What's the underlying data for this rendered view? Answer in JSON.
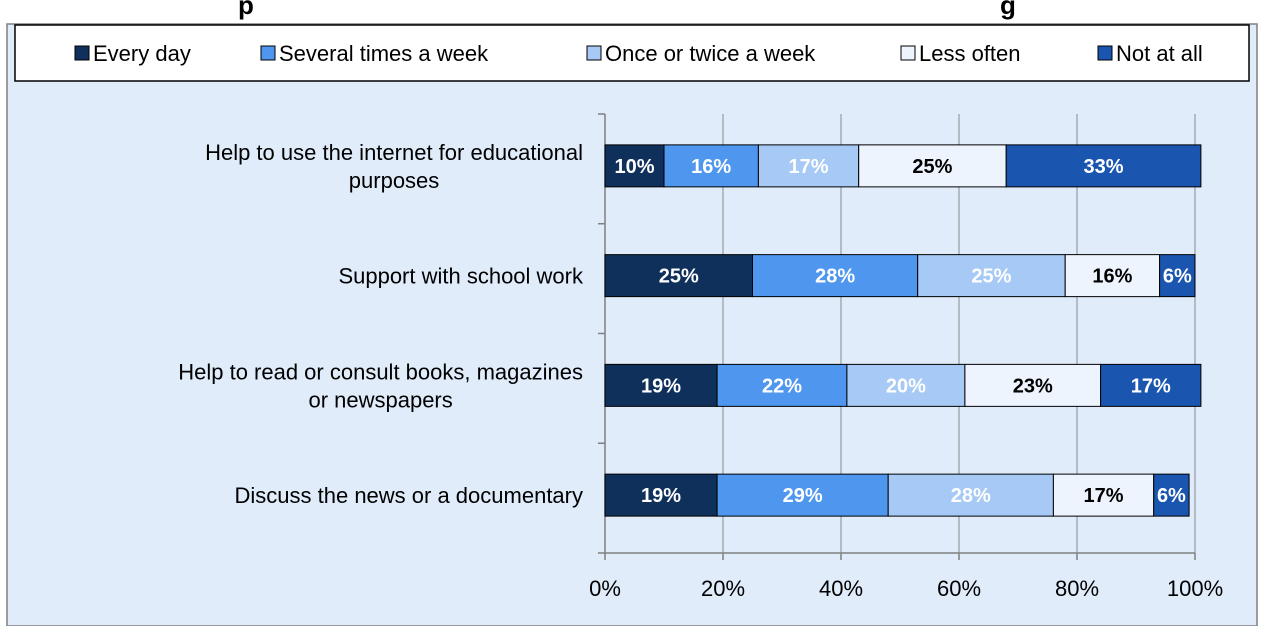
{
  "chart_data": {
    "type": "bar",
    "orientation": "horizontal",
    "stacked": true,
    "title_fragment": "p",
    "title_fragment_right": "g",
    "categories": [
      "Help to use the internet for educational purposes",
      "Support with school work",
      "Help to read or consult books, magazines or newspapers",
      "Discuss the news or a documentary"
    ],
    "series": [
      {
        "name": "Every day",
        "values": [
          10,
          25,
          19,
          19
        ],
        "color": "#10305c",
        "label_color": "#ffffff"
      },
      {
        "name": "Several times a week",
        "values": [
          16,
          28,
          22,
          29
        ],
        "color": "#4f97ee",
        "label_color": "#ffffff"
      },
      {
        "name": "Once or twice a week",
        "values": [
          17,
          25,
          20,
          28
        ],
        "color": "#a6c9f5",
        "label_color": "#ffffff"
      },
      {
        "name": "Less often",
        "values": [
          25,
          16,
          23,
          17
        ],
        "color": "#eef4fd",
        "label_color": "#000000"
      },
      {
        "name": "Not at all",
        "values": [
          33,
          6,
          17,
          6
        ],
        "color": "#1a55b0",
        "label_color": "#ffffff"
      }
    ],
    "xlim": [
      0,
      100
    ],
    "xticks": [
      "0%",
      "20%",
      "40%",
      "60%",
      "80%",
      "100%"
    ],
    "grid": true,
    "legend": "top",
    "background_color": "#e0ecfa"
  }
}
